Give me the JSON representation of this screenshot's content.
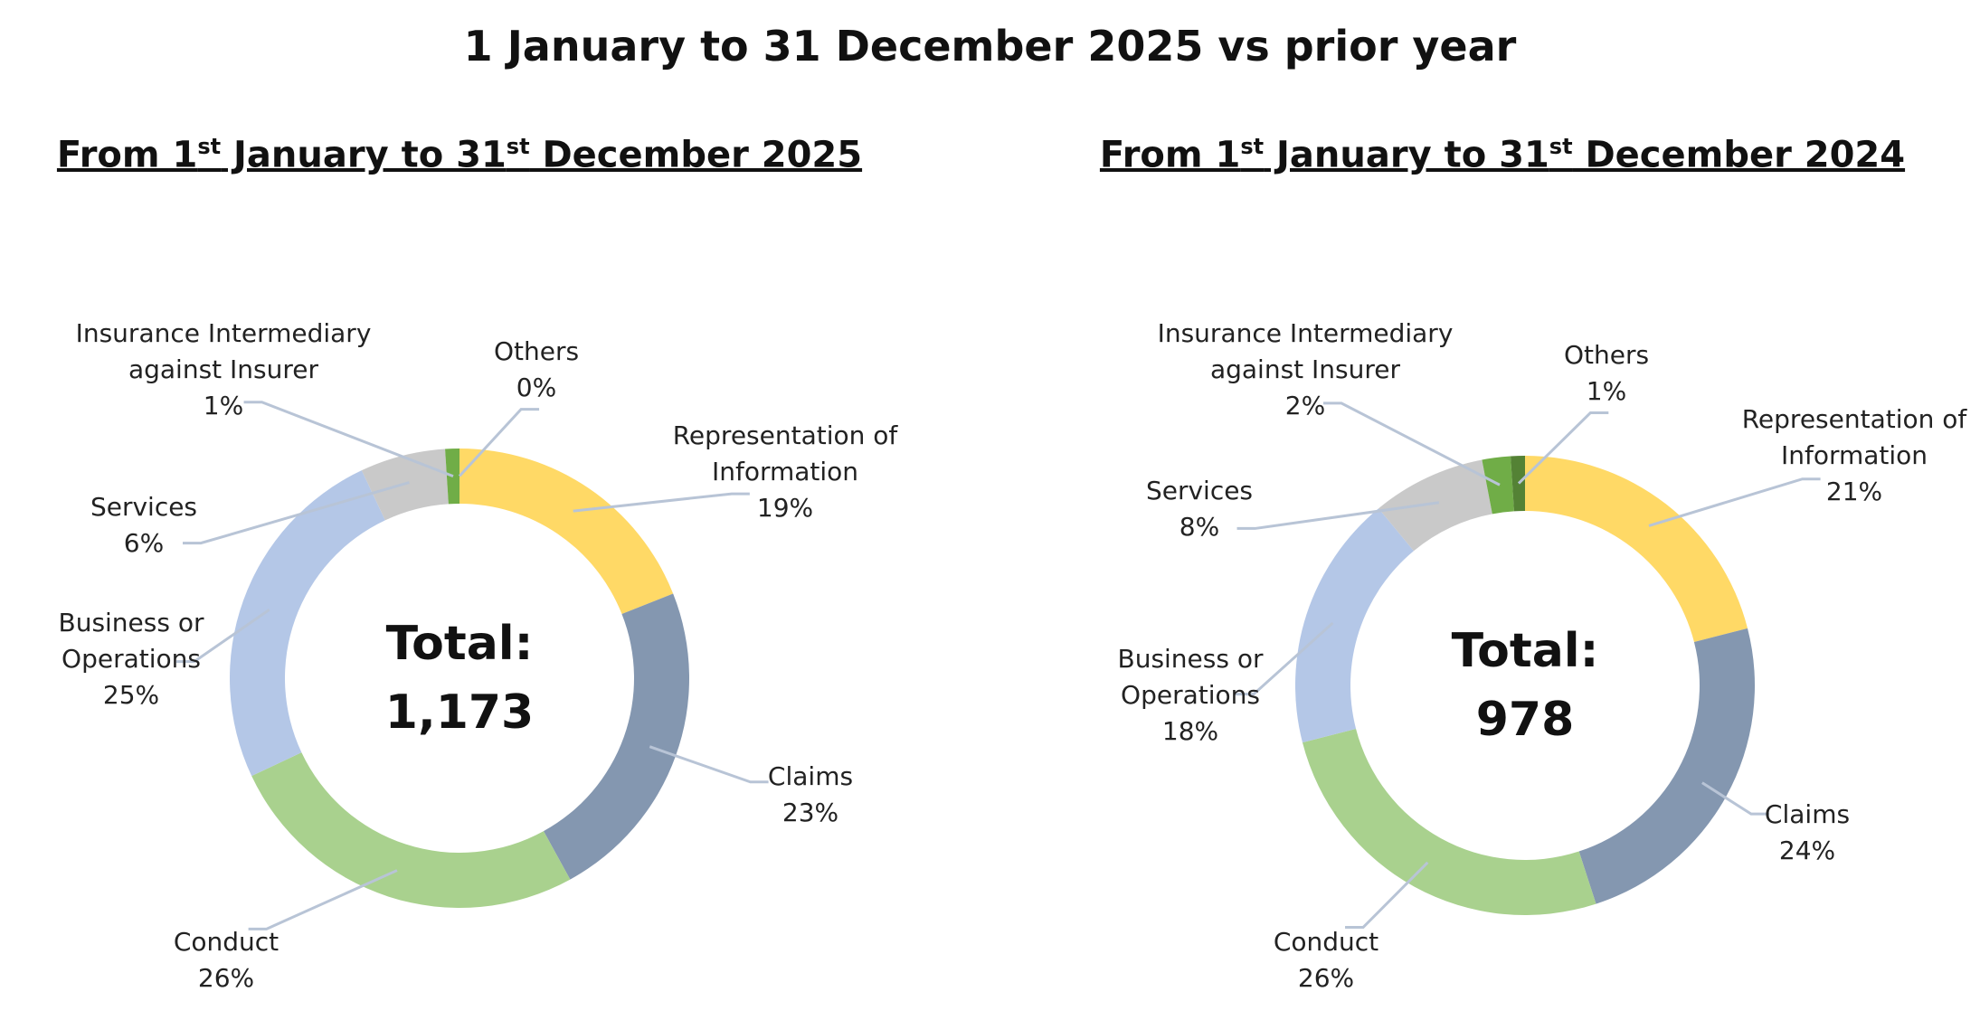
{
  "title": "1 January to 31 December 2025 vs prior year",
  "chart_data": [
    {
      "type": "donut",
      "title_parts": [
        "From 1",
        "st",
        " January to 31",
        "st",
        " December 2025"
      ],
      "center_text": [
        "Total:",
        "1,173"
      ],
      "categories": [
        "Representation of Information",
        "Claims",
        "Conduct",
        "Business or Operations",
        "Services",
        "Insurance Intermediary against Insurer",
        "Others"
      ],
      "values": [
        19,
        23,
        26,
        25,
        6,
        1,
        0
      ],
      "value_labels": [
        "19%",
        "23%",
        "26%",
        "25%",
        "6%",
        "1%",
        "0%"
      ],
      "colors": [
        "#ffd966",
        "#8497b0",
        "#a9d18e",
        "#b4c7e7",
        "#c9c9c9",
        "#70ad47",
        "#548235"
      ]
    },
    {
      "type": "donut",
      "title_parts": [
        "From 1",
        "st",
        " January to 31",
        "st",
        " December 2024"
      ],
      "center_text": [
        "Total:",
        "978"
      ],
      "categories": [
        "Representation of Information",
        "Claims",
        "Conduct",
        "Business or Operations",
        "Services",
        "Insurance Intermediary against Insurer",
        "Others"
      ],
      "values": [
        21,
        24,
        26,
        18,
        8,
        2,
        1
      ],
      "value_labels": [
        "21%",
        "24%",
        "26%",
        "18%",
        "8%",
        "2%",
        "1%"
      ],
      "colors": [
        "#ffd966",
        "#8497b0",
        "#a9d18e",
        "#b4c7e7",
        "#c9c9c9",
        "#70ad47",
        "#548235"
      ]
    }
  ]
}
